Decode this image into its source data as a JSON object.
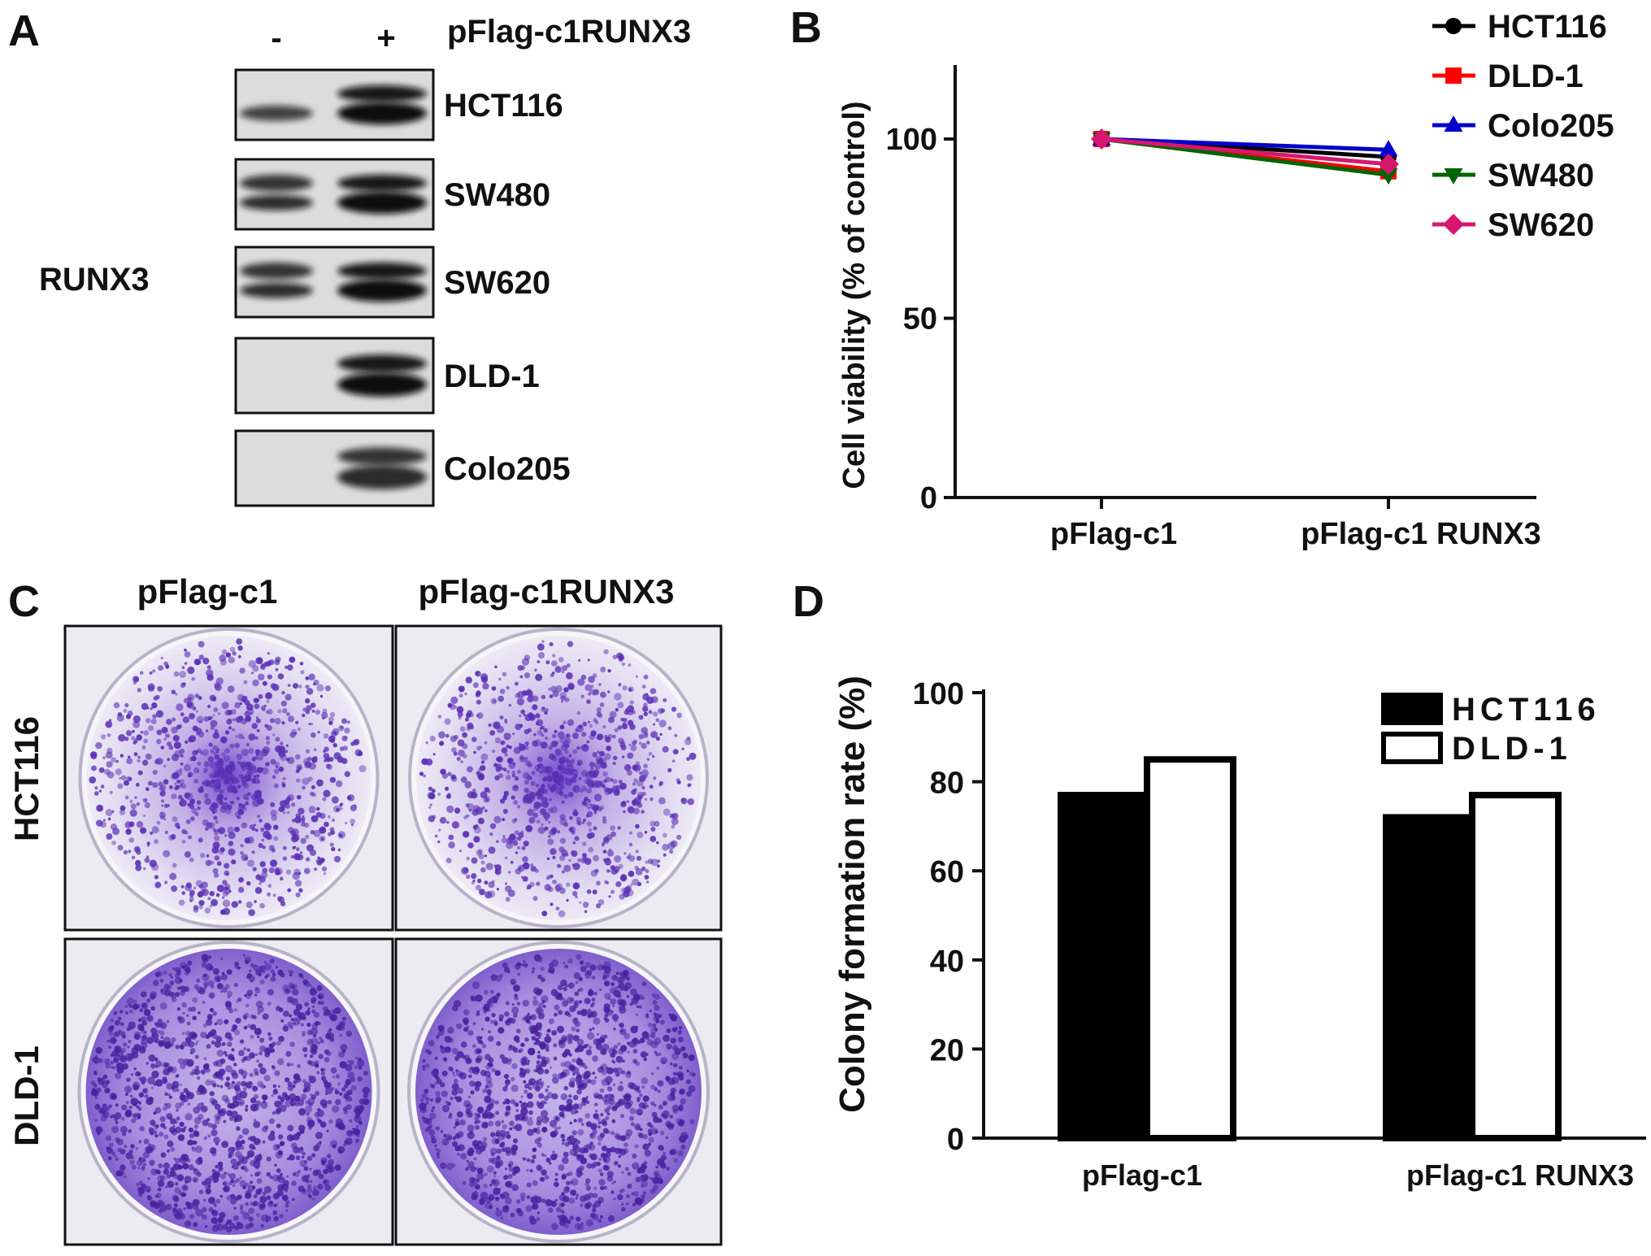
{
  "panelA": {
    "letter": "A",
    "minus": "-",
    "plus": "+",
    "construct": "pFlag-c1RUNX3",
    "protein": "RUNX3",
    "blots": [
      {
        "cell": "HCT116",
        "lanes": [
          "weak",
          "strong"
        ]
      },
      {
        "cell": "SW480",
        "lanes": [
          "medium",
          "strong"
        ]
      },
      {
        "cell": "SW620",
        "lanes": [
          "medium",
          "strong"
        ]
      },
      {
        "cell": "DLD-1",
        "lanes": [
          "none",
          "strong"
        ]
      },
      {
        "cell": "Colo205",
        "lanes": [
          "none",
          "medium"
        ]
      }
    ]
  },
  "panelC": {
    "letter": "C",
    "col_labels": [
      "pFlag-c1",
      "pFlag-c1RUNX3"
    ],
    "row_labels": [
      "HCT116",
      "DLD-1"
    ],
    "dish_color": "#7a52c7"
  },
  "chart_data": [
    {
      "panel": "B",
      "letter": "B",
      "type": "line",
      "categories": [
        "pFlag-c1",
        "pFlag-c1 RUNX3"
      ],
      "ylabel": "Cell viability (% of control)",
      "ylim": [
        0,
        120
      ],
      "yticks": [
        0,
        50,
        100
      ],
      "legend": "top-right",
      "series": [
        {
          "name": "HCT116",
          "values": [
            100,
            95
          ],
          "color": "#000000",
          "marker": "circle"
        },
        {
          "name": "DLD-1",
          "values": [
            100,
            91
          ],
          "color": "#ff0000",
          "marker": "square"
        },
        {
          "name": "Colo205",
          "values": [
            100,
            97
          ],
          "color": "#0000cc",
          "marker": "triangle-up"
        },
        {
          "name": "SW480",
          "values": [
            100,
            90
          ],
          "color": "#006400",
          "marker": "triangle-down"
        },
        {
          "name": "SW620",
          "values": [
            100,
            93
          ],
          "color": "#d6176f",
          "marker": "diamond"
        }
      ]
    },
    {
      "panel": "D",
      "letter": "D",
      "type": "bar",
      "categories": [
        "pFlag-c1",
        "pFlag-c1 RUNX3"
      ],
      "ylabel": "Colony formation rate (%)",
      "ylim": [
        0,
        100
      ],
      "yticks": [
        0,
        20,
        40,
        60,
        80,
        100
      ],
      "legend": "top-right",
      "series": [
        {
          "name": "HCT116",
          "values": [
            77,
            72
          ],
          "fill": "#000000"
        },
        {
          "name": "DLD-1",
          "values": [
            85,
            77
          ],
          "fill": "#ffffff"
        }
      ]
    }
  ]
}
